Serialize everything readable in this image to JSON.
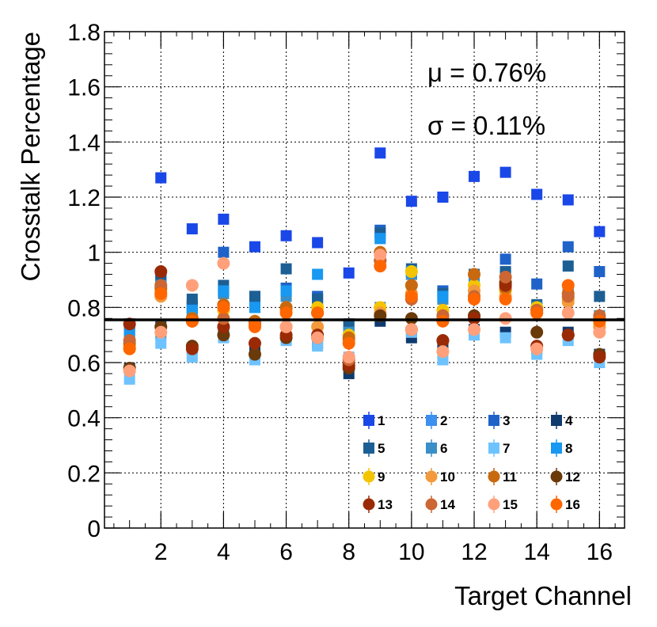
{
  "chart_data": {
    "type": "scatter",
    "title": "",
    "xlabel": "Target Channel",
    "ylabel": "Crosstalk Percentage",
    "xlim": [
      0.2,
      16.8
    ],
    "ylim": [
      0,
      1.8
    ],
    "x_ticks": [
      "2",
      "4",
      "6",
      "8",
      "10",
      "12",
      "14",
      "16"
    ],
    "y_ticks": [
      "0",
      "0.2",
      "0.4",
      "0.6",
      "0.8",
      "1",
      "1.2",
      "1.4",
      "1.6",
      "1.8"
    ],
    "grid": true,
    "mean_line": {
      "y": 0.755,
      "color": "#000000"
    },
    "stats": {
      "mu_label": "μ = 0.76%",
      "sigma_label": "σ = 0.11%"
    },
    "legend_position": "bottom-right",
    "x": [
      1,
      2,
      3,
      4,
      5,
      6,
      7,
      8,
      9,
      10,
      11,
      12,
      13,
      14,
      15,
      16
    ],
    "series": [
      {
        "name": "1",
        "marker": "square",
        "color": "#1a47e8",
        "values": [
          null,
          1.27,
          1.085,
          1.12,
          1.02,
          1.06,
          1.035,
          0.925,
          1.36,
          1.185,
          1.2,
          1.275,
          1.29,
          1.21,
          1.19,
          1.075
        ]
      },
      {
        "name": "2",
        "marker": "square",
        "color": "#3d8ff0",
        "values": [
          0.72,
          0.9,
          0.8,
          0.86,
          0.81,
          0.86,
          0.83,
          0.7,
          1.05,
          0.93,
          0.84,
          0.9,
          0.92,
          0.8,
          0.84,
          0.76
        ]
      },
      {
        "name": "3",
        "marker": "square",
        "color": "#1f63c9",
        "values": [
          0.74,
          0.91,
          0.81,
          1.0,
          0.84,
          0.87,
          0.84,
          0.74,
          1.08,
          0.92,
          0.86,
          0.91,
          0.975,
          0.885,
          1.02,
          0.93
        ]
      },
      {
        "name": "4",
        "marker": "square",
        "color": "#0f3a6e",
        "values": [
          0.58,
          0.73,
          0.65,
          0.71,
          0.66,
          0.69,
          0.67,
          0.56,
          0.75,
          0.69,
          0.67,
          0.72,
          0.71,
          0.65,
          0.71,
          0.63
        ]
      },
      {
        "name": "5",
        "marker": "square",
        "color": "#1c5f94",
        "values": [
          0.74,
          0.91,
          0.83,
          0.88,
          0.84,
          0.94,
          0.83,
          0.74,
          1.07,
          0.94,
          0.85,
          0.92,
          0.93,
          0.81,
          0.95,
          0.84
        ]
      },
      {
        "name": "6",
        "marker": "square",
        "color": "#3a8fc7",
        "values": [
          0.71,
          0.7,
          0.78,
          0.85,
          0.8,
          0.84,
          0.79,
          0.71,
          0.8,
          0.92,
          0.83,
          0.87,
          0.86,
          0.79,
          0.86,
          0.77
        ]
      },
      {
        "name": "7",
        "marker": "square",
        "color": "#6ec3ff",
        "values": [
          0.54,
          0.67,
          0.62,
          0.69,
          0.61,
          0.68,
          0.66,
          0.62,
          0.77,
          0.71,
          0.61,
          0.7,
          0.69,
          0.63,
          0.68,
          0.6
        ]
      },
      {
        "name": "8",
        "marker": "square",
        "color": "#1898f0",
        "values": [
          0.7,
          0.88,
          0.79,
          0.86,
          0.8,
          0.86,
          0.92,
          0.7,
          1.05,
          0.93,
          0.84,
          0.89,
          0.88,
          0.8,
          0.85,
          0.76
        ]
      },
      {
        "name": "9",
        "marker": "circle",
        "color": "#f5c400",
        "values": [
          0.65,
          0.86,
          0.76,
          0.79,
          0.75,
          0.8,
          0.8,
          0.7,
          0.8,
          0.93,
          0.79,
          0.88,
          0.86,
          0.8,
          0.83,
          0.74
        ]
      },
      {
        "name": "10",
        "marker": "circle",
        "color": "#f29a3c",
        "values": [
          0.66,
          0.84,
          0.75,
          0.8,
          0.74,
          0.79,
          0.73,
          0.68,
          0.78,
          0.85,
          0.76,
          0.86,
          0.84,
          0.78,
          0.82,
          0.73
        ]
      },
      {
        "name": "11",
        "marker": "circle",
        "color": "#c8690f",
        "values": [
          0.67,
          0.87,
          0.76,
          0.81,
          0.75,
          0.8,
          0.78,
          0.69,
          1.0,
          0.88,
          0.77,
          0.92,
          0.87,
          0.79,
          0.85,
          0.76
        ]
      },
      {
        "name": "12",
        "marker": "circle",
        "color": "#6b3a0a",
        "values": [
          0.58,
          0.73,
          0.66,
          0.7,
          0.63,
          0.69,
          0.69,
          0.58,
          0.77,
          0.76,
          0.68,
          0.77,
          0.89,
          0.71,
          0.7,
          0.63
        ]
      },
      {
        "name": "13",
        "marker": "circle",
        "color": "#9a2a05",
        "values": [
          0.74,
          0.93,
          0.65,
          0.73,
          0.67,
          0.7,
          0.7,
          0.59,
          0.97,
          0.72,
          0.68,
          0.76,
          0.88,
          0.66,
          0.7,
          0.62
        ]
      },
      {
        "name": "14",
        "marker": "circle",
        "color": "#cc6633",
        "values": [
          0.68,
          0.88,
          0.75,
          0.76,
          0.74,
          0.73,
          0.78,
          0.61,
          0.97,
          0.83,
          0.77,
          0.84,
          0.91,
          0.79,
          0.84,
          0.77
        ]
      },
      {
        "name": "15",
        "marker": "circle",
        "color": "#ffa07a",
        "values": [
          0.57,
          0.71,
          0.88,
          0.96,
          0.73,
          0.73,
          0.69,
          0.62,
          0.99,
          0.72,
          0.64,
          0.72,
          0.76,
          0.65,
          0.78,
          0.71
        ]
      },
      {
        "name": "16",
        "marker": "circle",
        "color": "#ff6600",
        "values": [
          0.65,
          0.85,
          0.75,
          0.8,
          0.73,
          0.78,
          0.78,
          0.67,
          0.95,
          0.84,
          0.75,
          0.83,
          0.83,
          0.78,
          0.88,
          0.75
        ]
      }
    ]
  }
}
